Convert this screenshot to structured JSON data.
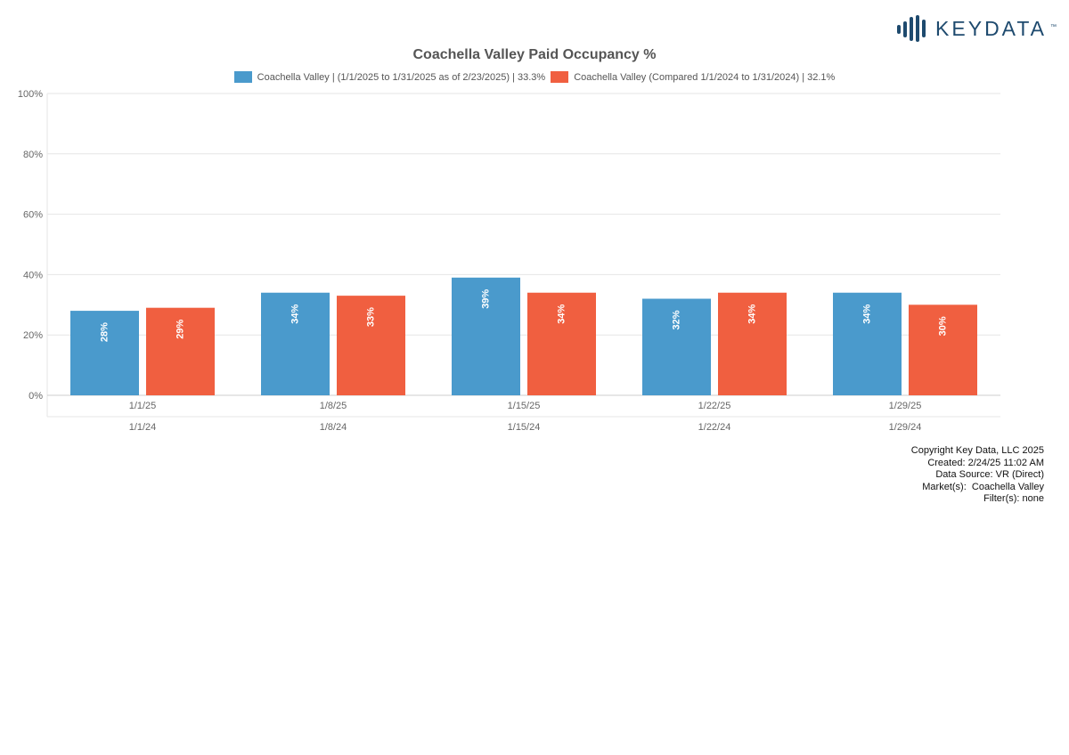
{
  "brand": {
    "name": "KEYDATA",
    "tm": "™"
  },
  "colors": {
    "series1": "#4a9acc",
    "series2": "#f05f40",
    "grid": "#e6e6e6",
    "axis": "#cccccc",
    "text": "#666666",
    "label": "#ffffff"
  },
  "chart_data": {
    "type": "bar",
    "title": "Coachella Valley Paid Occupancy %",
    "categories": [
      "1/1/25",
      "1/8/25",
      "1/15/25",
      "1/22/25",
      "1/29/25"
    ],
    "categories_secondary": [
      "1/1/24",
      "1/8/24",
      "1/15/24",
      "1/22/24",
      "1/29/24"
    ],
    "series": [
      {
        "name": "Coachella Valley | (1/1/2025 to 1/31/2025 as of 2/23/2025) | 33.3%",
        "values": [
          28,
          34,
          39,
          32,
          34
        ],
        "labels": [
          "28%",
          "34%",
          "39%",
          "32%",
          "34%"
        ]
      },
      {
        "name": "Coachella Valley (Compared 1/1/2024 to 1/31/2024) | 32.1%",
        "values": [
          29,
          33,
          34,
          34,
          30
        ],
        "labels": [
          "29%",
          "33%",
          "34%",
          "34%",
          "30%"
        ]
      }
    ],
    "ylim": [
      0,
      100
    ],
    "yticks": [
      "0%",
      "20%",
      "40%",
      "60%",
      "80%",
      "100%"
    ],
    "ytick_values": [
      0,
      20,
      40,
      60,
      80,
      100
    ],
    "grid": true,
    "legend": "top-center"
  },
  "footer": {
    "lines": [
      "Copyright Key Data, LLC 2025",
      "Created: 2/24/25 11:02 AM",
      "Data Source: VR (Direct)",
      "Market(s):  Coachella Valley",
      "Filter(s): none"
    ]
  }
}
